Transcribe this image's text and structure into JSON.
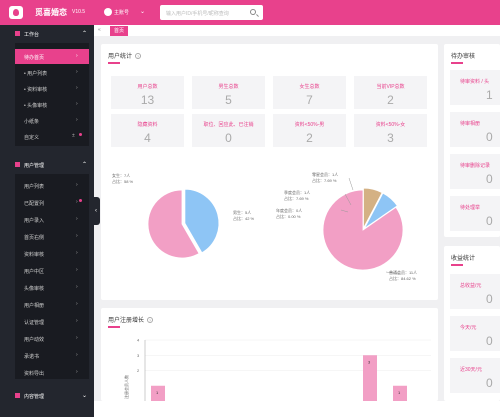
{
  "header": {
    "app_name": "觅喜婚恋",
    "version": "V10.5",
    "user_name": "主账号",
    "search_placeholder": "输入用户ID/手机号/昵称查询"
  },
  "colors": {
    "accent": "#e8418c",
    "sidebar": "#23262e",
    "female": "#f29fc5",
    "male": "#8ec5f5"
  },
  "sidebar": {
    "section_work": "工作台",
    "work_items": [
      {
        "label": "待办首页"
      },
      {
        "label": "• 用户列表"
      },
      {
        "label": "• 资料审核"
      },
      {
        "label": "• 头像审核"
      },
      {
        "label": "小纸条"
      },
      {
        "label": "自定义"
      }
    ],
    "section_users": "用户管理",
    "user_items": [
      {
        "label": "用户列表"
      },
      {
        "label": "已配置列"
      },
      {
        "label": "用户录入"
      },
      {
        "label": "首页右侧"
      },
      {
        "label": "资料审核"
      },
      {
        "label": "用户中区"
      },
      {
        "label": "头像审核"
      },
      {
        "label": "用户相册"
      },
      {
        "label": "认证管理"
      },
      {
        "label": "用户动效"
      },
      {
        "label": "承诺书"
      },
      {
        "label": "资料导出"
      }
    ],
    "section_content": "内容管理"
  },
  "tabs": {
    "home": "首页"
  },
  "user_stats": {
    "title": "用户统计",
    "cards": [
      {
        "label": "用户总数",
        "value": "13"
      },
      {
        "label": "男生总数",
        "value": "5"
      },
      {
        "label": "女生总数",
        "value": "7"
      },
      {
        "label": "当前VIP总数",
        "value": "2"
      },
      {
        "label": "隐藏资料",
        "value": "4"
      },
      {
        "label": "职位、回应此、已注销",
        "value": "0"
      },
      {
        "label": "资料<50%-男",
        "value": "2"
      },
      {
        "label": "资料<50%-女",
        "value": "3"
      }
    ]
  },
  "gender_pie": {
    "female_label": "女生：7人",
    "female_pct": "占比：58 %",
    "male_label": "男生：5人",
    "male_pct": "占比：42 %"
  },
  "member_pie": {
    "labels": [
      {
        "name": "零星会员：1人",
        "pct": "占比：7.69 %"
      },
      {
        "name": "季度会员：1人",
        "pct": "占比：7.69 %"
      },
      {
        "name": "年度会员：0人",
        "pct": "占比：0.00 %"
      },
      {
        "name": "普通会员：11人",
        "pct": "占比：84.62 %"
      }
    ]
  },
  "growth": {
    "title": "用户注册增长",
    "ylabel": "注册会员人数",
    "yticks": [
      "4",
      "3",
      "2"
    ],
    "bar_values": [
      "1",
      "3",
      "1"
    ]
  },
  "todo": {
    "title": "待办审核",
    "items": [
      {
        "label": "待审资料 / 头",
        "value": "1"
      },
      {
        "label": "待审相册",
        "value": "0"
      },
      {
        "label": "待审删除记录",
        "value": "0"
      },
      {
        "label": "待处理举",
        "value": "0"
      }
    ]
  },
  "revenue": {
    "title": "收益统计",
    "items": [
      {
        "label": "总收益/元",
        "value": "0"
      },
      {
        "label": "今天/元",
        "value": "0"
      },
      {
        "label": "近30天/元",
        "value": "0"
      }
    ]
  },
  "chart_data": [
    {
      "type": "pie",
      "title": "",
      "labels": [
        "女生",
        "男生"
      ],
      "values": [
        7,
        5
      ],
      "percent": [
        58,
        42
      ]
    },
    {
      "type": "pie",
      "title": "",
      "labels": [
        "零星会员",
        "季度会员",
        "年度会员",
        "普通会员"
      ],
      "values": [
        1,
        1,
        0,
        11
      ],
      "percent": [
        7.69,
        7.69,
        0.0,
        84.62
      ]
    },
    {
      "type": "bar",
      "title": "用户注册增长",
      "ylabel": "注册会员人数",
      "values": [
        1,
        3,
        1
      ],
      "ylim": [
        0,
        4
      ]
    }
  ]
}
